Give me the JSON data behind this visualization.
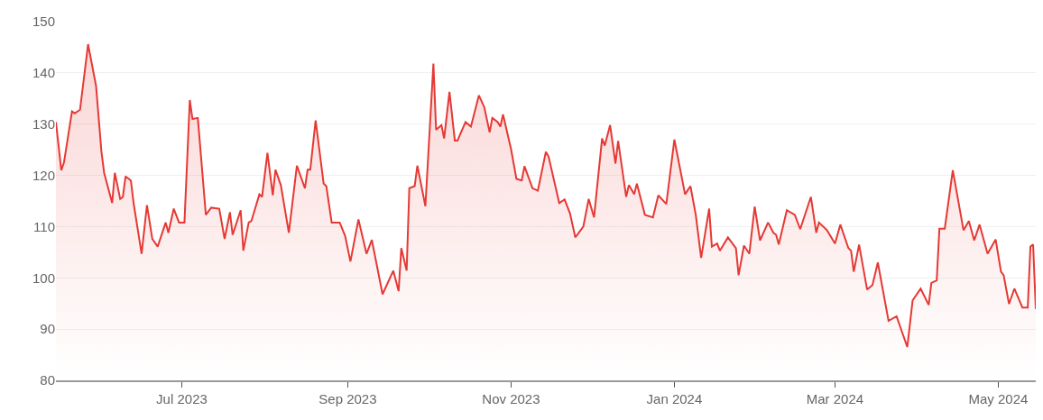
{
  "chart_data": {
    "type": "area",
    "x": [
      "2023-05-15",
      "2023-05-17",
      "2023-05-18",
      "2023-05-21",
      "2023-05-22",
      "2023-05-24",
      "2023-05-27",
      "2023-05-30",
      "2023-06-01",
      "2023-06-02",
      "2023-06-05",
      "2023-06-06",
      "2023-06-08",
      "2023-06-09",
      "2023-06-10",
      "2023-06-12",
      "2023-06-13",
      "2023-06-16",
      "2023-06-18",
      "2023-06-20",
      "2023-06-22",
      "2023-06-25",
      "2023-06-26",
      "2023-06-28",
      "2023-06-30",
      "2023-07-02",
      "2023-07-04",
      "2023-07-05",
      "2023-07-07",
      "2023-07-10",
      "2023-07-12",
      "2023-07-15",
      "2023-07-17",
      "2023-07-19",
      "2023-07-20",
      "2023-07-23",
      "2023-07-24",
      "2023-07-26",
      "2023-07-27",
      "2023-07-30",
      "2023-07-31",
      "2023-08-02",
      "2023-08-04",
      "2023-08-05",
      "2023-08-07",
      "2023-08-10",
      "2023-08-13",
      "2023-08-16",
      "2023-08-17",
      "2023-08-18",
      "2023-08-20",
      "2023-08-23",
      "2023-08-24",
      "2023-08-26",
      "2023-08-29",
      "2023-08-31",
      "2023-09-02",
      "2023-09-05",
      "2023-09-08",
      "2023-09-10",
      "2023-09-14",
      "2023-09-18",
      "2023-09-20",
      "2023-09-21",
      "2023-09-23",
      "2023-09-24",
      "2023-09-26",
      "2023-09-27",
      "2023-09-30",
      "2023-10-03",
      "2023-10-04",
      "2023-10-06",
      "2023-10-07",
      "2023-10-09",
      "2023-10-11",
      "2023-10-12",
      "2023-10-15",
      "2023-10-17",
      "2023-10-20",
      "2023-10-22",
      "2023-10-24",
      "2023-10-25",
      "2023-10-27",
      "2023-10-28",
      "2023-10-29",
      "2023-11-01",
      "2023-11-03",
      "2023-11-05",
      "2023-11-06",
      "2023-11-09",
      "2023-11-11",
      "2023-11-14",
      "2023-11-15",
      "2023-11-19",
      "2023-11-21",
      "2023-11-23",
      "2023-11-25",
      "2023-11-28",
      "2023-11-30",
      "2023-12-02",
      "2023-12-05",
      "2023-12-06",
      "2023-12-08",
      "2023-12-10",
      "2023-12-11",
      "2023-12-14",
      "2023-12-15",
      "2023-12-17",
      "2023-12-18",
      "2023-12-21",
      "2023-12-24",
      "2023-12-26",
      "2023-12-29",
      "2024-01-01",
      "2024-01-05",
      "2024-01-07",
      "2024-01-09",
      "2024-01-11",
      "2024-01-14",
      "2024-01-15",
      "2024-01-17",
      "2024-01-18",
      "2024-01-21",
      "2024-01-24",
      "2024-01-25",
      "2024-01-27",
      "2024-01-29",
      "2024-01-31",
      "2024-02-02",
      "2024-02-05",
      "2024-02-07",
      "2024-02-08",
      "2024-02-09",
      "2024-02-12",
      "2024-02-15",
      "2024-02-17",
      "2024-02-21",
      "2024-02-23",
      "2024-02-24",
      "2024-02-27",
      "2024-03-01",
      "2024-03-03",
      "2024-03-06",
      "2024-03-07",
      "2024-03-08",
      "2024-03-10",
      "2024-03-13",
      "2024-03-15",
      "2024-03-17",
      "2024-03-21",
      "2024-03-24",
      "2024-03-28",
      "2024-03-30",
      "2024-04-02",
      "2024-04-05",
      "2024-04-06",
      "2024-04-08",
      "2024-04-09",
      "2024-04-11",
      "2024-04-14",
      "2024-04-18",
      "2024-04-20",
      "2024-04-22",
      "2024-04-24",
      "2024-04-27",
      "2024-04-30",
      "2024-05-02",
      "2024-05-03",
      "2024-05-05",
      "2024-05-07",
      "2024-05-10",
      "2024-05-12",
      "2024-05-13",
      "2024-05-14",
      "2024-05-15"
    ],
    "series": [
      {
        "color": "#e53935",
        "values": [
          130.4,
          121,
          122.5,
          132.5,
          132.1,
          132.8,
          145.6,
          137.4,
          124.6,
          120.5,
          114.6,
          120.5,
          115.4,
          115.8,
          119.8,
          119,
          114.6,
          104.7,
          114.2,
          107.6,
          106.1,
          110.8,
          108.8,
          113.5,
          110.8,
          110.8,
          134.7,
          131,
          131.2,
          112.3,
          113.7,
          113.5,
          107.6,
          112.8,
          108.4,
          113.2,
          105.3,
          110.8,
          111.1,
          116.3,
          115.8,
          124.4,
          116.1,
          121.1,
          118.1,
          108.8,
          121.9,
          117.5,
          121.1,
          121.1,
          130.7,
          118.4,
          117.9,
          110.8,
          110.8,
          108.2,
          103.2,
          111.4,
          104.7,
          107.4,
          96.8,
          101.4,
          97.4,
          105.8,
          101.4,
          117.5,
          117.9,
          121.9,
          114,
          141.8,
          128.9,
          129.8,
          127.2,
          136.3,
          126.8,
          126.8,
          130.4,
          129.5,
          135.6,
          133.3,
          128.4,
          131.2,
          130.4,
          129.5,
          131.9,
          125.1,
          119.3,
          119,
          121.8,
          117.5,
          117,
          124.6,
          123.7,
          114.6,
          115.3,
          112.6,
          107.9,
          110,
          115.4,
          111.8,
          127.2,
          125.8,
          129.8,
          122.3,
          126.7,
          115.8,
          118.1,
          116.3,
          118.4,
          112.3,
          111.8,
          116.1,
          114.4,
          127,
          116.3,
          117.9,
          112.3,
          103.9,
          113.5,
          106.1,
          106.7,
          105.3,
          107.9,
          105.8,
          100.5,
          106.3,
          104.7,
          113.9,
          107.3,
          110.8,
          108.8,
          108.4,
          106.5,
          113.2,
          112.3,
          109.5,
          115.8,
          108.8,
          110.8,
          109.3,
          106.7,
          110.4,
          105.8,
          105.3,
          101.2,
          106.5,
          97.7,
          98.6,
          103,
          91.6,
          92.5,
          86.5,
          95.6,
          97.9,
          94.7,
          99,
          99.5,
          109.6,
          109.6,
          121,
          109.3,
          111.1,
          107.3,
          110.4,
          104.7,
          107.5,
          101.2,
          100.5,
          94.9,
          97.9,
          94.2,
          94.2,
          106.1,
          106.5,
          93.9
        ]
      }
    ],
    "xlim": [
      "2023-05-15",
      "2024-05-15"
    ],
    "xticks": [
      {
        "value": "2023-07-01",
        "label": "Jul 2023"
      },
      {
        "value": "2023-09-01",
        "label": "Sep 2023"
      },
      {
        "value": "2023-11-01",
        "label": "Nov 2023"
      },
      {
        "value": "2024-01-01",
        "label": "Jan 2024"
      },
      {
        "value": "2024-03-01",
        "label": "Mar 2024"
      },
      {
        "value": "2024-05-01",
        "label": "May 2024"
      }
    ],
    "ylim": [
      80,
      150
    ],
    "yticks": [
      80,
      90,
      100,
      110,
      120,
      130,
      140,
      150
    ],
    "grid": "y"
  }
}
